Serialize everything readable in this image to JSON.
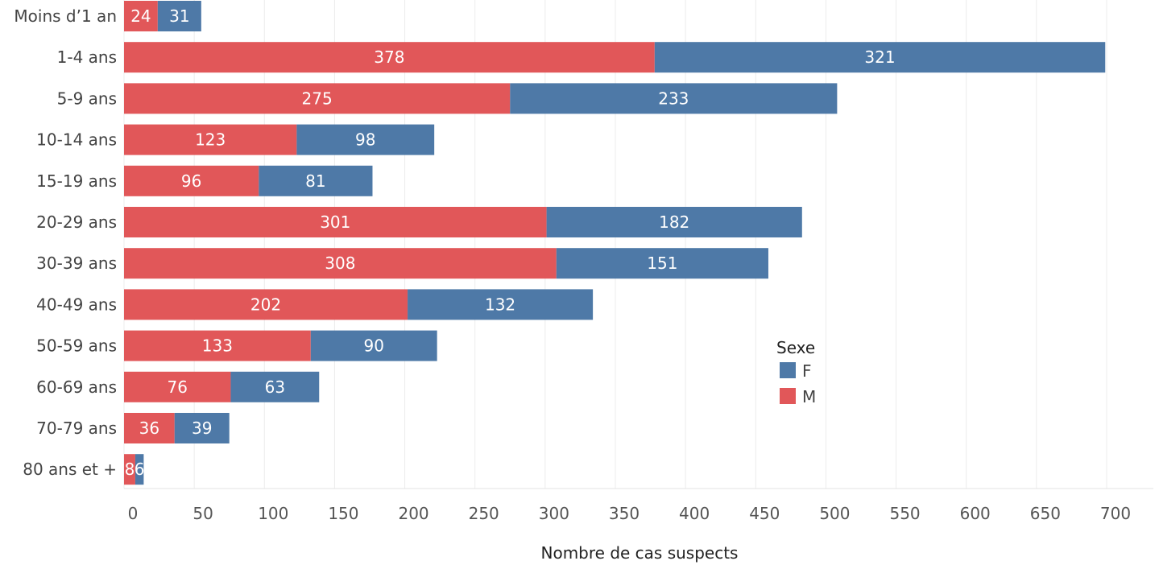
{
  "chart_data": {
    "type": "bar",
    "orientation": "horizontal",
    "stacked": true,
    "categories": [
      "Moins d’1 an",
      "1-4 ans",
      "5-9 ans",
      "10-14 ans",
      "15-19 ans",
      "20-29 ans",
      "30-39 ans",
      "40-49 ans",
      "50-59 ans",
      "60-69 ans",
      "70-79 ans",
      "80 ans et +"
    ],
    "series": [
      {
        "name": "M",
        "color": "#e15759",
        "values": [
          24,
          378,
          275,
          123,
          96,
          301,
          308,
          202,
          133,
          76,
          36,
          8
        ]
      },
      {
        "name": "F",
        "color": "#4e79a7",
        "values": [
          31,
          321,
          233,
          98,
          81,
          182,
          151,
          132,
          90,
          63,
          39,
          6
        ]
      }
    ],
    "xlabel": "Nombre de cas suspects",
    "ylabel": "",
    "xlim": [
      0,
      700
    ],
    "xticks": [
      0,
      50,
      100,
      150,
      200,
      250,
      300,
      350,
      400,
      450,
      500,
      550,
      600,
      650,
      700
    ],
    "grid": "vertical",
    "legend": {
      "title": "Sexe",
      "placement": "middle-right",
      "items": [
        {
          "label": "F",
          "color": "#4e79a7"
        },
        {
          "label": "M",
          "color": "#e15759"
        }
      ]
    }
  }
}
